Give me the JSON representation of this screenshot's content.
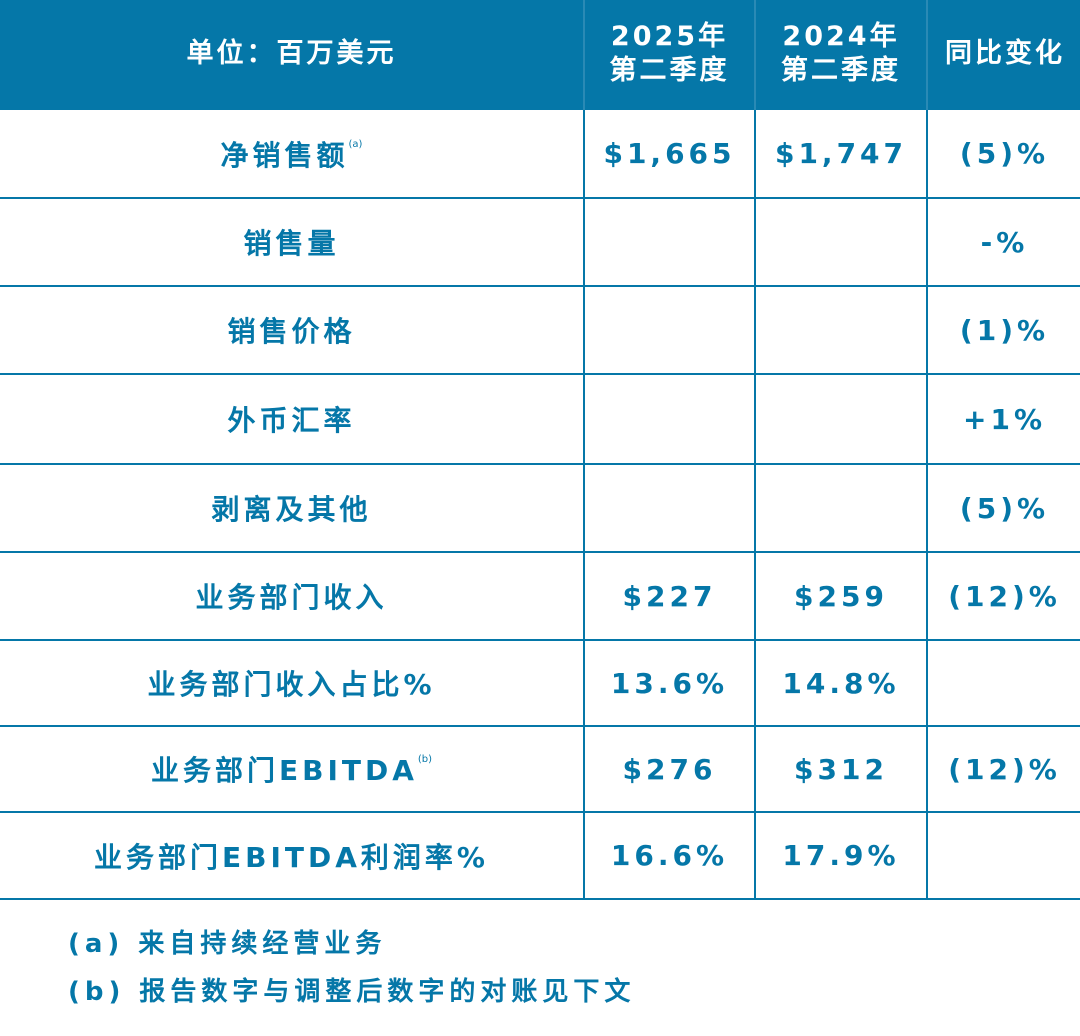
{
  "header": {
    "unit": "单位：百万美元",
    "col1": [
      "2025年",
      "第二季度"
    ],
    "col2": [
      "2024年",
      "第二季度"
    ],
    "col3": "同比变化"
  },
  "rows": [
    {
      "label": "净销售额",
      "note": "(a)",
      "v1": "$1,665",
      "v2": "$1,747",
      "chg": "(5)%"
    },
    {
      "label": "销售量",
      "note": "",
      "v1": "",
      "v2": "",
      "chg": "-%"
    },
    {
      "label": "销售价格",
      "note": "",
      "v1": "",
      "v2": "",
      "chg": "(1)%"
    },
    {
      "label": "外币汇率",
      "note": "",
      "v1": "",
      "v2": "",
      "chg": "+1%"
    },
    {
      "label": "剥离及其他",
      "note": "",
      "v1": "",
      "v2": "",
      "chg": "(5)%"
    },
    {
      "label": "业务部门收入",
      "note": "",
      "v1": "$227",
      "v2": "$259",
      "chg": "(12)%"
    },
    {
      "label": "业务部门收入占比%",
      "note": "",
      "v1": "13.6%",
      "v2": "14.8%",
      "chg": ""
    },
    {
      "label": "业务部门EBITDA",
      "note": "(b)",
      "v1": "$276",
      "v2": "$312",
      "chg": "(12)%"
    },
    {
      "label": "业务部门EBITDA利润率%",
      "note": "",
      "v1": "16.6%",
      "v2": "17.9%",
      "chg": ""
    }
  ],
  "footnotes": [
    "(a) 来自持续经营业务",
    "(b) 报告数字与调整后数字的对账见下文"
  ]
}
